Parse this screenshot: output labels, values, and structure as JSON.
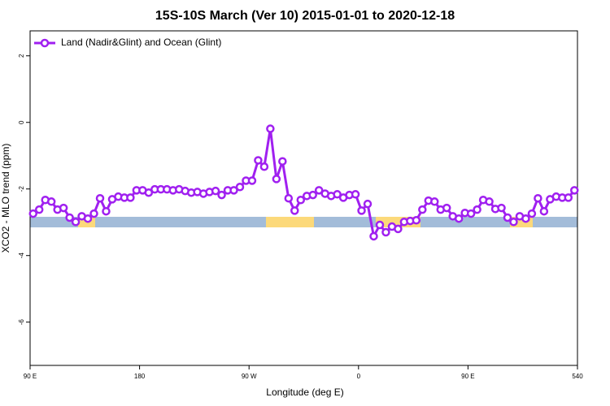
{
  "chart_data": {
    "type": "line",
    "title": "15S-10S March (Ver 10)   2015-01-01 to 2020-12-18",
    "x_label": "Longitude (deg E)",
    "y_label": "XCO2 - MLO trend (ppm)",
    "x": [
      92.5,
      97.5,
      102.5,
      107.5,
      112.5,
      117.5,
      122.5,
      127.5,
      132.5,
      137.5,
      142.5,
      147.5,
      152.5,
      157.5,
      162.5,
      167.5,
      172.5,
      177.5,
      182.5,
      187.5,
      192.5,
      197.5,
      202.5,
      207.5,
      212.5,
      217.5,
      222.5,
      227.5,
      232.5,
      237.5,
      242.5,
      247.5,
      252.5,
      257.5,
      262.5,
      267.5,
      272.5,
      277.5,
      282.5,
      287.5,
      292.5,
      297.5,
      302.5,
      307.5,
      312.5,
      317.5,
      322.5,
      327.5,
      332.5,
      337.5,
      342.5,
      347.5,
      352.5,
      357.5,
      362.5,
      367.5,
      372.5,
      377.5,
      382.5,
      387.5,
      392.5,
      397.5,
      402.5,
      407.5,
      412.5,
      417.5,
      422.5,
      427.5,
      432.5,
      437.5,
      442.5,
      447.5,
      452.5,
      457.5,
      462.5,
      467.5,
      472.5,
      477.5,
      482.5,
      487.5,
      492.5,
      497.5,
      502.5,
      507.5,
      512.5,
      517.5,
      522.5,
      527.5,
      532.5,
      537.5
    ],
    "series": [
      {
        "name": "Land (Nadir&Glint) and Ocean (Glint)",
        "color": "#a020f0",
        "values": [
          -2.74,
          -2.62,
          -2.33,
          -2.38,
          -2.62,
          -2.57,
          -2.86,
          -2.99,
          -2.82,
          -2.89,
          -2.74,
          -2.28,
          -2.67,
          -2.31,
          -2.23,
          -2.26,
          -2.26,
          -2.04,
          -2.04,
          -2.11,
          -2.01,
          -2.01,
          -2.01,
          -2.04,
          -2.01,
          -2.06,
          -2.11,
          -2.09,
          -2.14,
          -2.09,
          -2.06,
          -2.18,
          -2.04,
          -2.04,
          -1.94,
          -1.75,
          -1.75,
          -1.14,
          -1.33,
          -0.19,
          -1.7,
          -1.17,
          -2.28,
          -2.65,
          -2.33,
          -2.21,
          -2.18,
          -2.04,
          -2.14,
          -2.21,
          -2.16,
          -2.26,
          -2.18,
          -2.16,
          -2.65,
          -2.45,
          -3.42,
          -3.08,
          -3.3,
          -3.13,
          -3.2,
          -2.99,
          -2.96,
          -2.94,
          -2.62,
          -2.35,
          -2.38,
          -2.62,
          -2.57,
          -2.82,
          -2.89,
          -2.72,
          -2.74,
          -2.62,
          -2.33,
          -2.38,
          -2.6,
          -2.57,
          -2.86,
          -2.99,
          -2.82,
          -2.89,
          -2.74,
          -2.28,
          -2.67,
          -2.31,
          -2.23,
          -2.26,
          -2.26,
          -2.04
        ]
      }
    ],
    "xlim": [
      90,
      540
    ],
    "xticks": [
      {
        "value": 90,
        "label": "90 E"
      },
      180,
      {
        "value": 270,
        "label": "90 W"
      },
      {
        "value": 360,
        "label": "0"
      },
      {
        "value": 450,
        "label": "90 E"
      },
      540
    ],
    "ylim": [
      -7.3,
      2.75
    ],
    "yticks": [
      -6,
      -4,
      -2,
      0,
      2
    ],
    "legend": "upper left"
  }
}
